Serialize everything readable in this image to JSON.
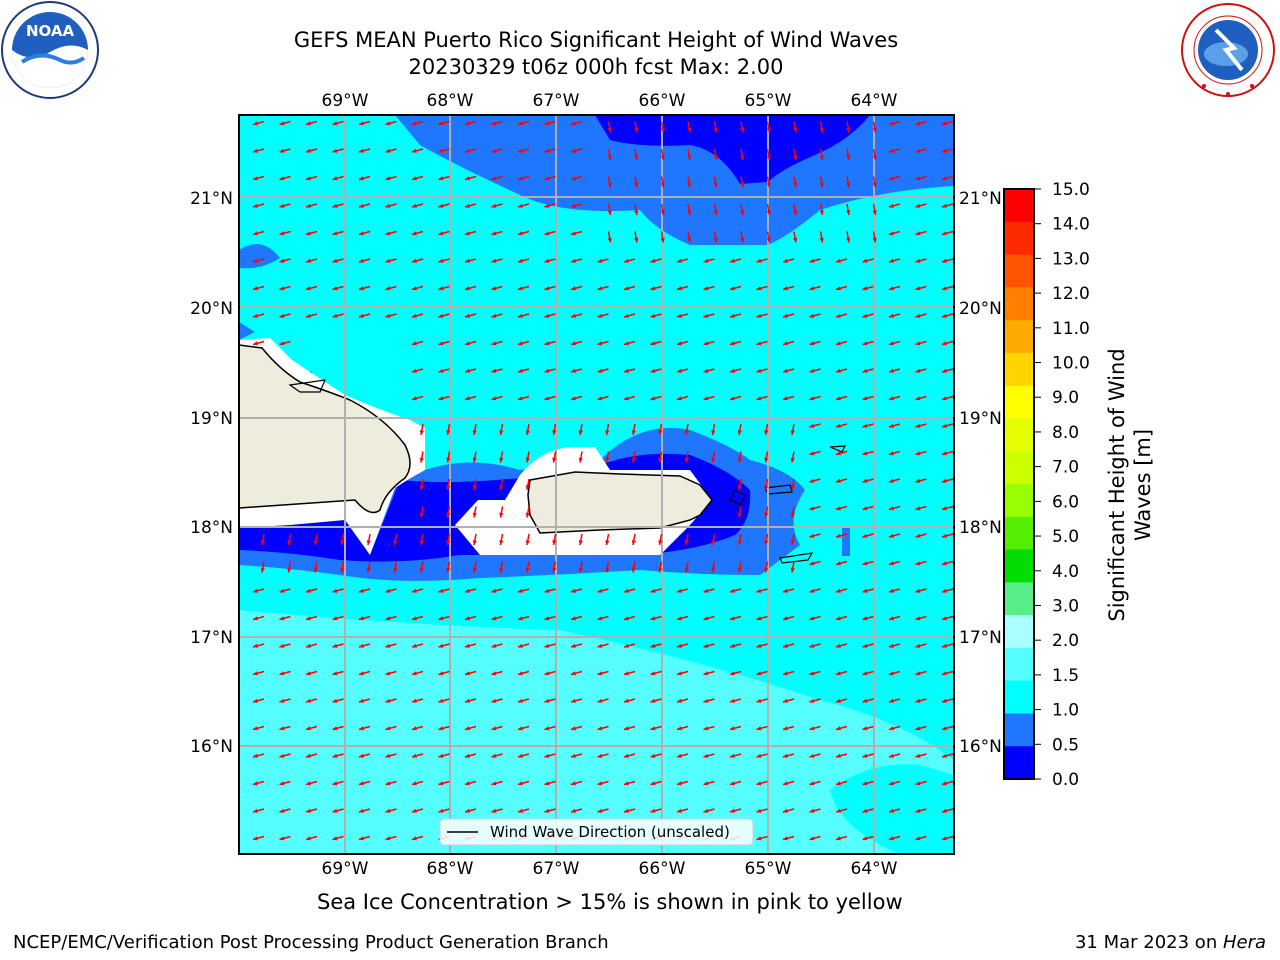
{
  "header": {
    "title_line1": "GEFS MEAN Puerto Rico Significant Height of Wind Waves",
    "title_line2": "20230329 t06z 000h fcst   Max: 2.00",
    "noaa_logo_text": "NOAA",
    "noaa_ring_text": "NATIONAL OCEANIC AND ATMOSPHERIC ADMINISTRATION · U.S. DEPARTMENT OF COMMERCE",
    "nws_ring_text": "NATIONAL WEATHER SERVICE"
  },
  "map": {
    "lon_labels": [
      "69°W",
      "68°W",
      "67°W",
      "66°W",
      "65°W",
      "64°W"
    ],
    "lat_labels": [
      "21°N",
      "20°N",
      "19°N",
      "18°N",
      "17°N",
      "16°N"
    ],
    "legend_label": "Wind Wave Direction (unscaled)",
    "colors": {
      "land": "#eeecdd",
      "ocean_lowest": "#0000ff",
      "ocean_low": "#1f77ff",
      "ocean_mid": "#00ffff",
      "ocean_high": "#55ffff",
      "arrow": "#ff0000",
      "grid": "#b0b0b0"
    }
  },
  "colorbar": {
    "label_line1": "Significant Height of Wind",
    "label_line2": "Waves [m]",
    "ticks": [
      "15.0",
      "14.0",
      "13.0",
      "12.0",
      "11.0",
      "10.0",
      "9.0",
      "8.0",
      "7.0",
      "6.0",
      "5.0",
      "4.0",
      "3.0",
      "2.0",
      "1.5",
      "1.0",
      "0.5",
      "0.0"
    ],
    "colors_top_to_bottom": [
      "#ff0000",
      "#ff2a00",
      "#ff5500",
      "#ff8000",
      "#ffaa00",
      "#ffd400",
      "#ffff00",
      "#e5ff00",
      "#ccff00",
      "#99ff00",
      "#55ee00",
      "#00dd00",
      "#55ee88",
      "#aaffff",
      "#55ffff",
      "#00ffff",
      "#1f77ff",
      "#0000ff"
    ]
  },
  "note": "Sea Ice Concentration > 15% is shown in pink to yellow",
  "footer": {
    "left": "NCEP/EMC/Verification Post Processing Product Generation Branch",
    "right_prefix": "31 Mar 2023 on ",
    "right_host": "Hera"
  }
}
